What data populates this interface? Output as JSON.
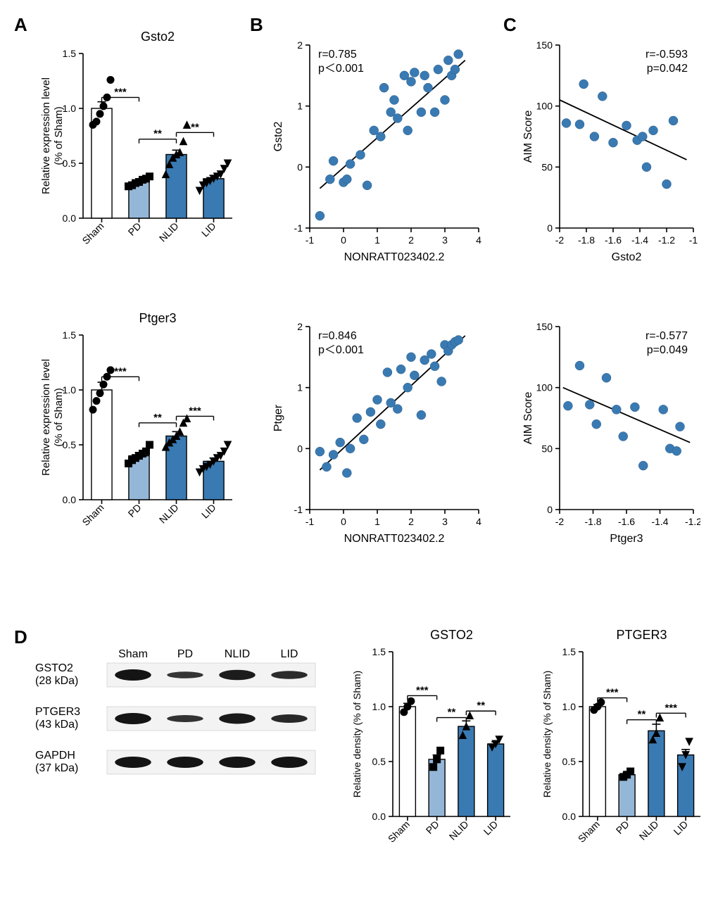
{
  "colors": {
    "bar_sham": "#ffffff",
    "bar_pd": "#94b7d8",
    "bar_nlid": "#3a7ab2",
    "bar_lid": "#3a7ab2",
    "stroke": "#000000",
    "point": "#3a7ab2",
    "band_dark": "#2a2a2a",
    "band_med": "#5a5a5a",
    "band_light": "#8a8a8a"
  },
  "panels": {
    "A": "A",
    "B": "B",
    "C": "C",
    "D": "D"
  },
  "A": {
    "gsto2": {
      "title": "Gsto2",
      "ylabel_l1": "Relative expression level",
      "ylabel_l2": "(% of Sham)",
      "ylim": [
        0.0,
        1.5
      ],
      "ytick": [
        0.0,
        0.5,
        1.0,
        1.5
      ],
      "cats": [
        "Sham",
        "PD",
        "NLID",
        "LID"
      ],
      "bars": [
        1.0,
        0.33,
        0.58,
        0.36
      ],
      "sem": [
        0.06,
        0.02,
        0.04,
        0.03
      ],
      "markers": [
        "circle",
        "square",
        "triangle",
        "triangle-down"
      ],
      "points": {
        "Sham": [
          0.85,
          0.88,
          0.95,
          1.02,
          1.1,
          1.26
        ],
        "PD": [
          0.29,
          0.3,
          0.32,
          0.33,
          0.35,
          0.36,
          0.38
        ],
        "NLID": [
          0.4,
          0.49,
          0.55,
          0.58,
          0.6,
          0.7,
          0.85
        ],
        "LID": [
          0.25,
          0.3,
          0.32,
          0.34,
          0.36,
          0.38,
          0.4,
          0.45,
          0.5
        ]
      },
      "sig": [
        {
          "from": 0,
          "to": 1,
          "label": "***",
          "y": 1.1
        },
        {
          "from": 1,
          "to": 2,
          "label": "**",
          "y": 0.72
        },
        {
          "from": 2,
          "to": 3,
          "label": "**",
          "y": 0.78
        }
      ]
    },
    "ptger3": {
      "title": "Ptger3",
      "ylabel_l1": "Relative expression level",
      "ylabel_l2": "(% of Sham)",
      "ylim": [
        0.0,
        1.5
      ],
      "ytick": [
        0.0,
        0.5,
        1.0,
        1.5
      ],
      "cats": [
        "Sham",
        "PD",
        "NLID",
        "LID"
      ],
      "bars": [
        1.0,
        0.4,
        0.58,
        0.35
      ],
      "sem": [
        0.07,
        0.03,
        0.04,
        0.03
      ],
      "markers": [
        "circle",
        "square",
        "triangle",
        "triangle-down"
      ],
      "points": {
        "Sham": [
          0.82,
          0.9,
          0.97,
          1.05,
          1.12,
          1.18
        ],
        "PD": [
          0.33,
          0.36,
          0.38,
          0.4,
          0.42,
          0.44,
          0.5
        ],
        "NLID": [
          0.48,
          0.52,
          0.55,
          0.58,
          0.62,
          0.7,
          0.74
        ],
        "LID": [
          0.25,
          0.28,
          0.3,
          0.32,
          0.35,
          0.38,
          0.4,
          0.44,
          0.5
        ]
      },
      "sig": [
        {
          "from": 0,
          "to": 1,
          "label": "***",
          "y": 1.12
        },
        {
          "from": 1,
          "to": 2,
          "label": "**",
          "y": 0.7
        },
        {
          "from": 2,
          "to": 3,
          "label": "***",
          "y": 0.76
        }
      ]
    }
  },
  "B": {
    "gsto2": {
      "xlabel": "NONRATT023402.2",
      "ylabel": "Gsto2",
      "xlim": [
        -1,
        4
      ],
      "xticks": [
        -1,
        0,
        1,
        2,
        3,
        4
      ],
      "ylim": [
        -1,
        2
      ],
      "yticks": [
        -1,
        0,
        1,
        2
      ],
      "r_text": "r=0.785",
      "p_text": "p＜0.001",
      "line": {
        "x1": -0.7,
        "y1": -0.35,
        "x2": 3.6,
        "y2": 1.75
      },
      "points": [
        [
          -0.7,
          -0.8
        ],
        [
          -0.4,
          -0.2
        ],
        [
          -0.3,
          0.1
        ],
        [
          0.0,
          -0.25
        ],
        [
          0.1,
          -0.2
        ],
        [
          0.2,
          0.05
        ],
        [
          0.5,
          0.2
        ],
        [
          0.7,
          -0.3
        ],
        [
          0.9,
          0.6
        ],
        [
          1.1,
          0.5
        ],
        [
          1.2,
          1.3
        ],
        [
          1.4,
          0.9
        ],
        [
          1.5,
          1.1
        ],
        [
          1.6,
          0.8
        ],
        [
          1.8,
          1.5
        ],
        [
          1.9,
          0.6
        ],
        [
          2.0,
          1.4
        ],
        [
          2.1,
          1.55
        ],
        [
          2.3,
          0.9
        ],
        [
          2.4,
          1.5
        ],
        [
          2.5,
          1.3
        ],
        [
          2.7,
          0.9
        ],
        [
          2.8,
          1.6
        ],
        [
          3.0,
          1.1
        ],
        [
          3.1,
          1.75
        ],
        [
          3.2,
          1.5
        ],
        [
          3.3,
          1.6
        ],
        [
          3.4,
          1.85
        ]
      ]
    },
    "ptger3": {
      "xlabel": "NONRATT023402.2",
      "ylabel": "Ptger",
      "xlim": [
        -1,
        4
      ],
      "xticks": [
        -1,
        0,
        1,
        2,
        3,
        4
      ],
      "ylim": [
        -1,
        2
      ],
      "yticks": [
        -1,
        0,
        1,
        2
      ],
      "r_text": "r=0.846",
      "p_text": "p＜0.001",
      "line": {
        "x1": -0.7,
        "y1": -0.35,
        "x2": 3.6,
        "y2": 1.85
      },
      "points": [
        [
          -0.7,
          -0.05
        ],
        [
          -0.5,
          -0.3
        ],
        [
          -0.3,
          -0.1
        ],
        [
          -0.1,
          0.1
        ],
        [
          0.1,
          -0.4
        ],
        [
          0.2,
          0.0
        ],
        [
          0.4,
          0.5
        ],
        [
          0.6,
          0.15
        ],
        [
          0.8,
          0.6
        ],
        [
          1.0,
          0.8
        ],
        [
          1.1,
          0.4
        ],
        [
          1.3,
          1.25
        ],
        [
          1.4,
          0.75
        ],
        [
          1.6,
          0.65
        ],
        [
          1.7,
          1.3
        ],
        [
          1.9,
          1.0
        ],
        [
          2.0,
          1.5
        ],
        [
          2.1,
          1.2
        ],
        [
          2.3,
          0.55
        ],
        [
          2.4,
          1.45
        ],
        [
          2.6,
          1.55
        ],
        [
          2.7,
          1.35
        ],
        [
          2.9,
          1.1
        ],
        [
          3.0,
          1.7
        ],
        [
          3.1,
          1.6
        ],
        [
          3.2,
          1.7
        ],
        [
          3.3,
          1.75
        ],
        [
          3.4,
          1.78
        ]
      ]
    }
  },
  "C": {
    "gsto2": {
      "xlabel": "Gsto2",
      "ylabel": "AIM Score",
      "xlim": [
        -2.0,
        -1.0
      ],
      "xticks": [
        -2.0,
        -1.8,
        -1.6,
        -1.4,
        -1.2,
        -1.0
      ],
      "ylim": [
        0,
        150
      ],
      "yticks": [
        0,
        50,
        100,
        150
      ],
      "r_text": "r=-0.593",
      "p_text": "p=0.042",
      "line": {
        "x1": -2.0,
        "y1": 105,
        "x2": -1.05,
        "y2": 56
      },
      "points": [
        [
          -1.95,
          86
        ],
        [
          -1.85,
          85
        ],
        [
          -1.82,
          118
        ],
        [
          -1.68,
          108
        ],
        [
          -1.74,
          75
        ],
        [
          -1.6,
          70
        ],
        [
          -1.5,
          84
        ],
        [
          -1.42,
          72
        ],
        [
          -1.38,
          75
        ],
        [
          -1.35,
          50
        ],
        [
          -1.3,
          80
        ],
        [
          -1.2,
          36
        ],
        [
          -1.15,
          88
        ]
      ]
    },
    "ptger3": {
      "xlabel": "Ptger3",
      "ylabel": "AIM Score",
      "xlim": [
        -2.0,
        -1.2
      ],
      "xticks": [
        -2.0,
        -1.8,
        -1.6,
        -1.4,
        -1.2
      ],
      "ylim": [
        0,
        150
      ],
      "yticks": [
        0,
        50,
        100,
        150
      ],
      "r_text": "r=-0.577",
      "p_text": "p=0.049",
      "line": {
        "x1": -1.98,
        "y1": 100,
        "x2": -1.22,
        "y2": 55
      },
      "points": [
        [
          -1.95,
          85
        ],
        [
          -1.88,
          118
        ],
        [
          -1.82,
          86
        ],
        [
          -1.78,
          70
        ],
        [
          -1.72,
          108
        ],
        [
          -1.66,
          82
        ],
        [
          -1.62,
          60
        ],
        [
          -1.55,
          84
        ],
        [
          -1.5,
          36
        ],
        [
          -1.38,
          82
        ],
        [
          -1.34,
          50
        ],
        [
          -1.3,
          48
        ],
        [
          -1.28,
          68
        ]
      ]
    }
  },
  "D": {
    "lanes": [
      "Sham",
      "PD",
      "NLID",
      "LID"
    ],
    "rows": [
      {
        "label_l1": "GSTO2",
        "label_l2": "(28 kDa)",
        "intensity": [
          1.0,
          0.35,
          0.85,
          0.55
        ]
      },
      {
        "label_l1": "PTGER3",
        "label_l2": "(43 kDa)",
        "intensity": [
          1.0,
          0.4,
          0.9,
          0.6
        ]
      },
      {
        "label_l1": "GAPDH",
        "label_l2": "(37 kDa)",
        "intensity": [
          1.0,
          1.0,
          1.0,
          1.0
        ]
      }
    ],
    "bar_gsto2": {
      "title": "GSTO2",
      "ylabel": "Relative density (% of Sham)",
      "ylim": [
        0.0,
        1.5
      ],
      "ytick": [
        0.0,
        0.5,
        1.0,
        1.5
      ],
      "cats": [
        "Sham",
        "PD",
        "NLID",
        "LID"
      ],
      "bars": [
        1.0,
        0.52,
        0.82,
        0.66
      ],
      "sem": [
        0.03,
        0.04,
        0.05,
        0.02
      ],
      "markers": [
        "circle",
        "square",
        "triangle",
        "triangle-down"
      ],
      "points": {
        "Sham": [
          0.95,
          1.0,
          1.05
        ],
        "PD": [
          0.45,
          0.52,
          0.6
        ],
        "NLID": [
          0.74,
          0.82,
          0.92
        ],
        "LID": [
          0.63,
          0.66,
          0.7
        ]
      },
      "sig": [
        {
          "from": 0,
          "to": 1,
          "label": "***",
          "y": 1.1
        },
        {
          "from": 1,
          "to": 2,
          "label": "**",
          "y": 0.9
        },
        {
          "from": 2,
          "to": 3,
          "label": "**",
          "y": 0.96
        }
      ]
    },
    "bar_ptger3": {
      "title": "PTGER3",
      "ylabel": "Relative density (% of Sham)",
      "ylim": [
        0.0,
        1.5
      ],
      "ytick": [
        0.0,
        0.5,
        1.0,
        1.5
      ],
      "cats": [
        "Sham",
        "PD",
        "NLID",
        "LID"
      ],
      "bars": [
        1.0,
        0.38,
        0.78,
        0.56
      ],
      "sem": [
        0.02,
        0.02,
        0.06,
        0.05
      ],
      "markers": [
        "circle",
        "square",
        "triangle",
        "triangle-down"
      ],
      "points": {
        "Sham": [
          0.97,
          1.0,
          1.04
        ],
        "PD": [
          0.36,
          0.38,
          0.41
        ],
        "NLID": [
          0.7,
          0.76,
          0.9
        ],
        "LID": [
          0.45,
          0.56,
          0.68
        ]
      },
      "sig": [
        {
          "from": 0,
          "to": 1,
          "label": "***",
          "y": 1.08
        },
        {
          "from": 1,
          "to": 2,
          "label": "**",
          "y": 0.88
        },
        {
          "from": 2,
          "to": 3,
          "label": "***",
          "y": 0.94
        }
      ]
    }
  }
}
